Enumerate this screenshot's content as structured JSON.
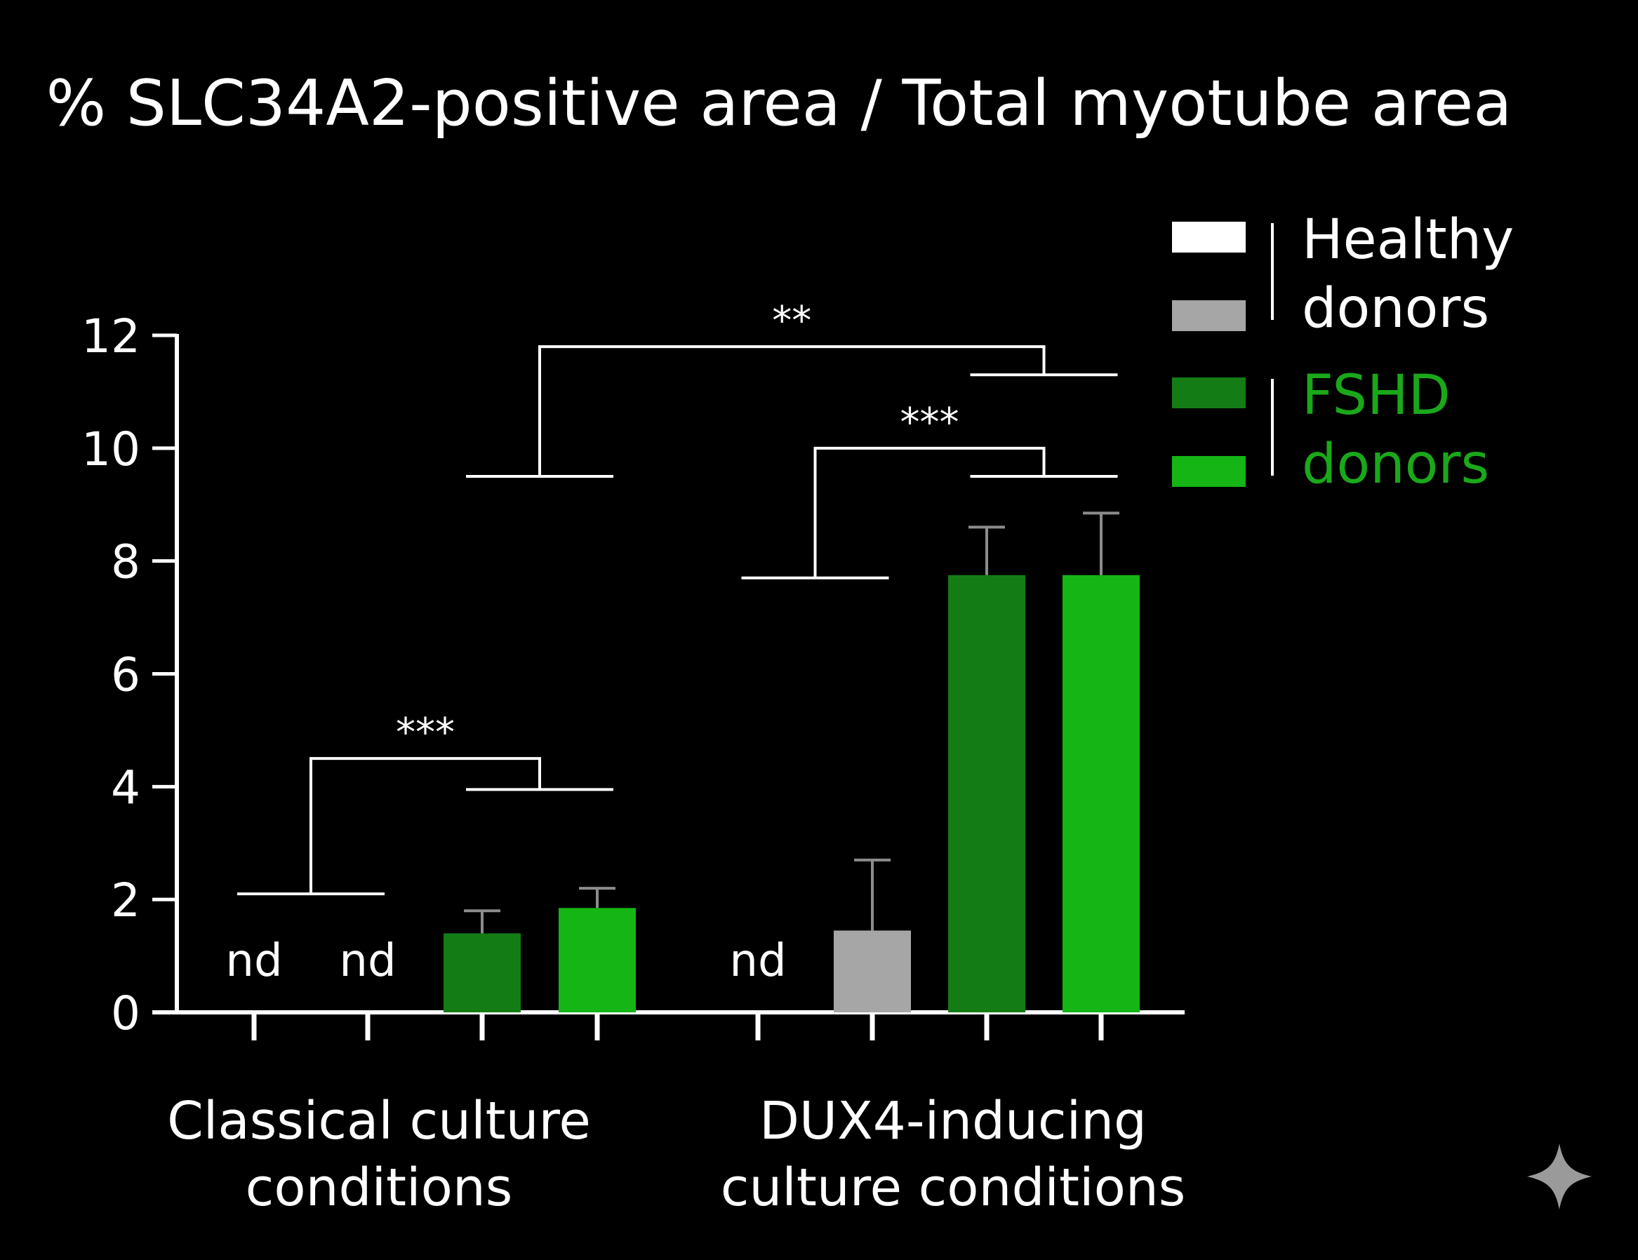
{
  "chart_data": {
    "type": "bar",
    "title": "% SLC34A2-positive area / Total myotube area",
    "xlabel": "",
    "ylabel": "",
    "ylim": [
      0,
      12
    ],
    "yticks": [
      0,
      2,
      4,
      6,
      8,
      10,
      12
    ],
    "grid": false,
    "legend_position": "top-right",
    "groups": [
      {
        "label": "Classical culture conditions",
        "label_lines": [
          "Classical culture",
          "conditions"
        ],
        "bars": [
          {
            "series": "Healthy donor 1",
            "value": null,
            "label": "nd"
          },
          {
            "series": "Healthy donor 2",
            "value": null,
            "label": "nd"
          },
          {
            "series": "FSHD donor 1",
            "value": 1.4,
            "error": 0.4
          },
          {
            "series": "FSHD donor 2",
            "value": 1.85,
            "error": 0.35
          }
        ]
      },
      {
        "label": "DUX4-inducing culture conditions",
        "label_lines": [
          "DUX4-inducing",
          "culture conditions"
        ],
        "bars": [
          {
            "series": "Healthy donor 1",
            "value": null,
            "label": "nd"
          },
          {
            "series": "Healthy donor 2",
            "value": 1.45,
            "error": 1.25
          },
          {
            "series": "FSHD donor 1",
            "value": 7.75,
            "error": 0.85
          },
          {
            "series": "FSHD donor 2",
            "value": 7.75,
            "error": 1.1
          }
        ]
      }
    ],
    "legend": {
      "entries": [
        {
          "group": "Healthy donors",
          "label_lines": [
            "Healthy",
            "donors"
          ],
          "swatches": [
            "#ffffff",
            "#a6a6a6"
          ],
          "text_color": "#ffffff"
        },
        {
          "group": "FSHD donors",
          "label_lines": [
            "FSHD",
            "donors"
          ],
          "swatches": [
            "#147c14",
            "#15b515"
          ],
          "text_color": "#1aa81a"
        }
      ]
    },
    "significance": [
      {
        "label": "***",
        "from_bars": [
          0,
          1
        ],
        "to_bars": [
          2,
          3
        ],
        "from_level": 2.1,
        "to_level": 3.95,
        "top": 4.5
      },
      {
        "label": "***",
        "from_bars": [
          4,
          5
        ],
        "to_bars": [
          6,
          7
        ],
        "from_level": 7.7,
        "to_level": 9.5,
        "top": 10.0
      },
      {
        "label": "**",
        "from_bars": [
          2,
          3
        ],
        "to_bars": [
          6,
          7
        ],
        "from_level": 9.5,
        "to_level": 11.3,
        "top": 11.8
      }
    ],
    "colors": {
      "background": "#000000",
      "axis": "#ffffff",
      "healthy_donor_1": "#ffffff",
      "healthy_donor_2": "#a6a6a6",
      "fshd_donor_1": "#147c14",
      "fshd_donor_2": "#15b515",
      "error_bar": "#8c8c8c"
    },
    "logo_icon": "sparkle-icon"
  }
}
